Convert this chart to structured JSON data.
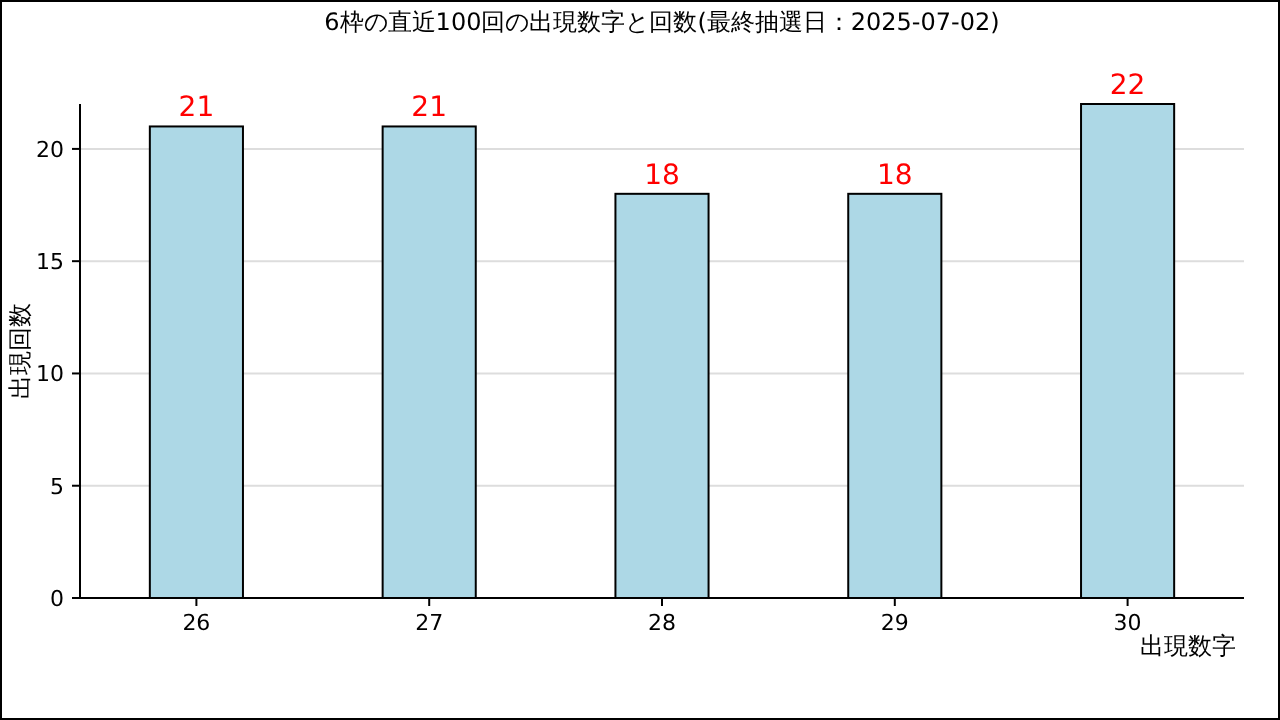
{
  "chart_data": {
    "type": "bar",
    "title": "6枠の直近100回の出現数字と回数(最終抽選日：2025-07-02)",
    "xlabel": "出現数字",
    "ylabel": "出現回数",
    "categories": [
      "26",
      "27",
      "28",
      "29",
      "30"
    ],
    "values": [
      21,
      21,
      18,
      18,
      22
    ],
    "color": "#add8e6",
    "data_labels": true,
    "ylim": [
      0,
      22
    ],
    "yticks": [
      0,
      5,
      10,
      15,
      20
    ],
    "grid": "y"
  }
}
